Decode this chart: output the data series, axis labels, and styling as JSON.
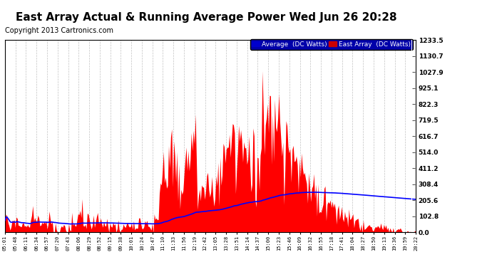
{
  "title": "East Array Actual & Running Average Power Wed Jun 26 20:28",
  "copyright": "Copyright 2013 Cartronics.com",
  "ylabel_right_values": [
    0.0,
    102.8,
    205.6,
    308.4,
    411.2,
    514.0,
    616.7,
    719.5,
    822.3,
    925.1,
    1027.9,
    1130.7,
    1233.5
  ],
  "ymax": 1233.5,
  "ymin": 0.0,
  "legend_labels": [
    "Average  (DC Watts)",
    "East Array  (DC Watts)"
  ],
  "title_fontsize": 11,
  "copyright_fontsize": 7,
  "background_color": "#ffffff",
  "plot_bg": "#ffffff",
  "grid_color": "#bbbbbb",
  "fill_color": "#ff0000",
  "line_color": "#0000ff",
  "x_tick_labels": [
    "05:01",
    "05:48",
    "06:11",
    "06:34",
    "06:57",
    "07:20",
    "07:43",
    "08:06",
    "08:29",
    "08:52",
    "09:15",
    "09:38",
    "10:01",
    "10:24",
    "10:47",
    "11:10",
    "11:33",
    "11:56",
    "12:19",
    "12:42",
    "13:05",
    "13:28",
    "13:51",
    "14:14",
    "14:37",
    "15:00",
    "15:23",
    "15:46",
    "16:09",
    "16:32",
    "16:55",
    "17:18",
    "17:41",
    "18:04",
    "18:27",
    "18:50",
    "19:13",
    "19:36",
    "19:59",
    "20:22"
  ],
  "num_points": 400
}
